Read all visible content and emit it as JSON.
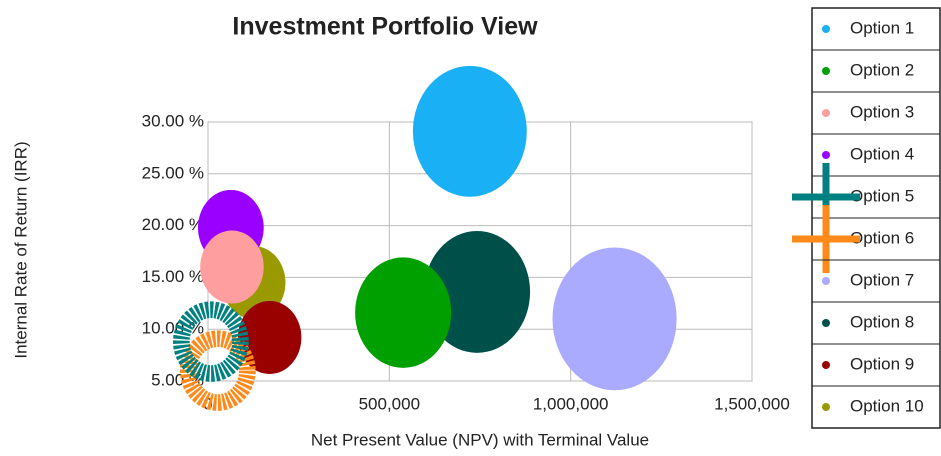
{
  "chart_data": {
    "type": "bubble",
    "title": "Investment Portfolio View",
    "x_label": "Net Present Value (NPV) with Terminal Value",
    "y_label": "Internal Rate of Return (IRR)",
    "xlim": [
      0,
      1500000
    ],
    "ylim": [
      5,
      30
    ],
    "xticks": [
      0,
      {
        "value": 500000,
        "label": "500,000"
      },
      {
        "value": 1000000,
        "label": "1,000,000"
      },
      {
        "value": 1500000,
        "label": "1,500,000"
      }
    ],
    "yticks": [
      {
        "value": 5,
        "label": "5.00 %"
      },
      {
        "value": 10,
        "label": "10.00 %"
      },
      {
        "value": 15,
        "label": "15.00 %"
      },
      {
        "value": 20,
        "label": "20.00 %"
      },
      {
        "value": 25,
        "label": "25.00 %"
      },
      {
        "value": 30,
        "label": "30.00 %"
      }
    ],
    "grid": true,
    "legend": "right",
    "series": [
      {
        "name": "Option 1",
        "color": "#1ab0f5",
        "x": 722000,
        "y": 29.1,
        "size": 90
      },
      {
        "name": "Option 2",
        "color": "#00a000",
        "x": 538000,
        "y": 11.6,
        "size": 64
      },
      {
        "name": "Option 3",
        "color": "#ff9e9e",
        "x": 66000,
        "y": 16.0,
        "size": 28
      },
      {
        "name": "Option 4",
        "color": "#9a00ff",
        "x": 63000,
        "y": 19.8,
        "size": 30
      },
      {
        "name": "Option 5",
        "color": "#008080",
        "x": 8000,
        "y": 8.8,
        "size": 38,
        "style": "ring"
      },
      {
        "name": "Option 6",
        "color": "#ff8a1a",
        "x": 27000,
        "y": 6.0,
        "size": 38,
        "style": "ring"
      },
      {
        "name": "Option 7",
        "color": "#aaaaff",
        "x": 1121000,
        "y": 11.0,
        "size": 107
      },
      {
        "name": "Option 8",
        "color": "#00504a",
        "x": 742000,
        "y": 13.6,
        "size": 78
      },
      {
        "name": "Option 9",
        "color": "#990000",
        "x": 170000,
        "y": 9.2,
        "size": 28
      },
      {
        "name": "Option 10",
        "color": "#999900",
        "x": 126000,
        "y": 14.5,
        "size": 28
      }
    ]
  }
}
